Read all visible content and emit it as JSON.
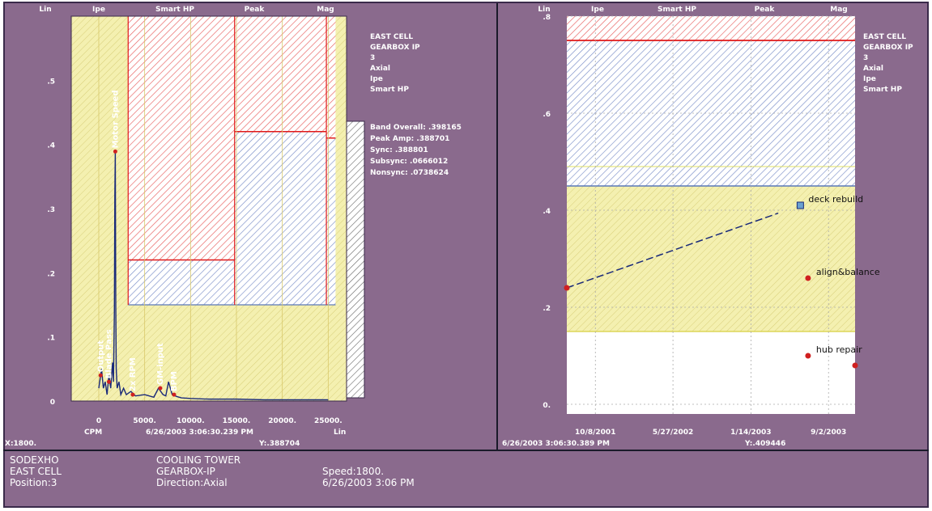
{
  "colors": {
    "background": "#8a6a8d",
    "plot_bg": "#ffffff",
    "alert_yellow": "#f4f0b0",
    "danger_red": "#e01818",
    "warning_blue": "#5a78b8",
    "spectrum_line": "#1a2a7a",
    "marker_red": "#d02020",
    "grid": "#d8c86a"
  },
  "chart_data": [
    {
      "type": "line",
      "name": "spectrum",
      "top_labels": [
        "Lin",
        "Ipe",
        "Smart HP",
        "Peak",
        "Mag"
      ],
      "xlim": [
        -3000,
        27000
      ],
      "ylim": [
        0,
        0.6
      ],
      "x_ticks": [
        0,
        5000,
        10000,
        15000,
        20000,
        25000
      ],
      "x_tick_labels": [
        "0",
        "5000.",
        "10000.",
        "15000.",
        "20000.",
        "25000."
      ],
      "y_ticks": [
        0,
        0.1,
        0.2,
        0.3,
        0.4,
        0.5
      ],
      "y_tick_labels": [
        "0",
        ".1",
        ".2",
        ".3",
        ".4",
        ".5"
      ],
      "x_unit_left": "CPM",
      "x_unit_right": "Lin",
      "date_label": "6/26/2003 3:06:30.239 PM",
      "cursor_left": "X:1800.",
      "cursor_right": "Y:.388704",
      "alarm_bands": [
        {
          "x_start": -3000,
          "x_end": 27000,
          "alert": 0.6,
          "color": "yellow"
        },
        {
          "x_start": 3200,
          "x_end": 14800,
          "alert": 0.15,
          "danger": 0.22
        },
        {
          "x_start": 14800,
          "x_end": 24800,
          "alert": 0.15,
          "danger": 0.42
        },
        {
          "x_start": 24800,
          "x_end": 25800,
          "alert": 0.15,
          "danger": 0.41
        }
      ],
      "series": [
        {
          "x": [
            0,
            300,
            500,
            700,
            900,
            1100,
            1300,
            1500,
            1600,
            1700,
            1750,
            1800,
            1850,
            1900,
            2000,
            2200,
            2400,
            2700,
            3000,
            3500,
            4000,
            5000,
            6000,
            6500,
            7000,
            7300,
            7600,
            8000,
            8500,
            9000,
            10000,
            12000,
            15000,
            18000,
            21000,
            24000,
            25000
          ],
          "values": [
            0.02,
            0.05,
            0.02,
            0.03,
            0.01,
            0.04,
            0.02,
            0.06,
            0.03,
            0.14,
            0.32,
            0.389,
            0.15,
            0.05,
            0.02,
            0.03,
            0.01,
            0.02,
            0.01,
            0.015,
            0.008,
            0.01,
            0.006,
            0.02,
            0.01,
            0.008,
            0.03,
            0.01,
            0.007,
            0.005,
            0.004,
            0.003,
            0.003,
            0.002,
            0.002,
            0.002,
            0.002
          ]
        }
      ],
      "annotations": [
        {
          "label": "Motor Speed",
          "x": 1800,
          "y": 0.389
        },
        {
          "label": "Output",
          "x": 200,
          "y": 0.04
        },
        {
          "label": "Blade Pass",
          "x": 1100,
          "y": 0.03
        },
        {
          "label": "2x RPM",
          "x": 3700,
          "y": 0.01
        },
        {
          "label": "GM-input",
          "x": 6700,
          "y": 0.02
        },
        {
          "label": "BPM",
          "x": 8200,
          "y": 0.01
        }
      ],
      "info_lines": [
        "EAST CELL",
        "GEARBOX IP",
        "3",
        "Axial",
        "Ipe",
        "Smart HP"
      ],
      "stat_lines": [
        "Band Overall: .398165",
        "Peak Amp: .388701",
        "Sync: .388801",
        "Subsync: .0666012",
        "Nonsync: .0738624"
      ]
    },
    {
      "type": "line",
      "name": "trend",
      "top_labels": [
        "Lin",
        "Ipe",
        "Smart HP",
        "Peak",
        "Mag"
      ],
      "x_tick_labels": [
        "10/8/2001",
        "5/27/2002",
        "1/14/2003",
        "9/2/2003"
      ],
      "y_ticks": [
        0,
        0.2,
        0.4,
        0.6,
        0.8
      ],
      "y_tick_labels": [
        "0.",
        ".2",
        ".4",
        ".6",
        ".8"
      ],
      "ylim": [
        -0.02,
        0.8
      ],
      "date_label": "6/26/2003 3:06:30.389 PM",
      "cursor_right": "Y:.409446",
      "alarm_levels": {
        "danger": 0.75,
        "warning": 0.45,
        "alert": 0.15
      },
      "series": [
        {
          "x": [
            "7/15/2001",
            "6/10/2003",
            "7/3/2003",
            "7/3/2003",
            "11/20/2003"
          ],
          "values": [
            0.24,
            0.41,
            0.26,
            0.1,
            0.08
          ]
        }
      ],
      "annotations": [
        {
          "label": "deck rebuild",
          "point": 1
        },
        {
          "label": "align&balance",
          "point": 2
        },
        {
          "label": "hub repair",
          "point": 3
        }
      ],
      "info_lines": [
        "EAST CELL",
        "GEARBOX IP",
        "3",
        "Axial",
        "Ipe",
        "Smart HP"
      ]
    }
  ],
  "footer": {
    "col1": [
      "SODEXHO",
      "EAST CELL",
      "Position:3"
    ],
    "col2": [
      "COOLING TOWER",
      "GEARBOX-IP",
      "Direction:Axial"
    ],
    "col3": [
      "",
      "Speed:1800.",
      "6/26/2003 3:06 PM"
    ]
  }
}
